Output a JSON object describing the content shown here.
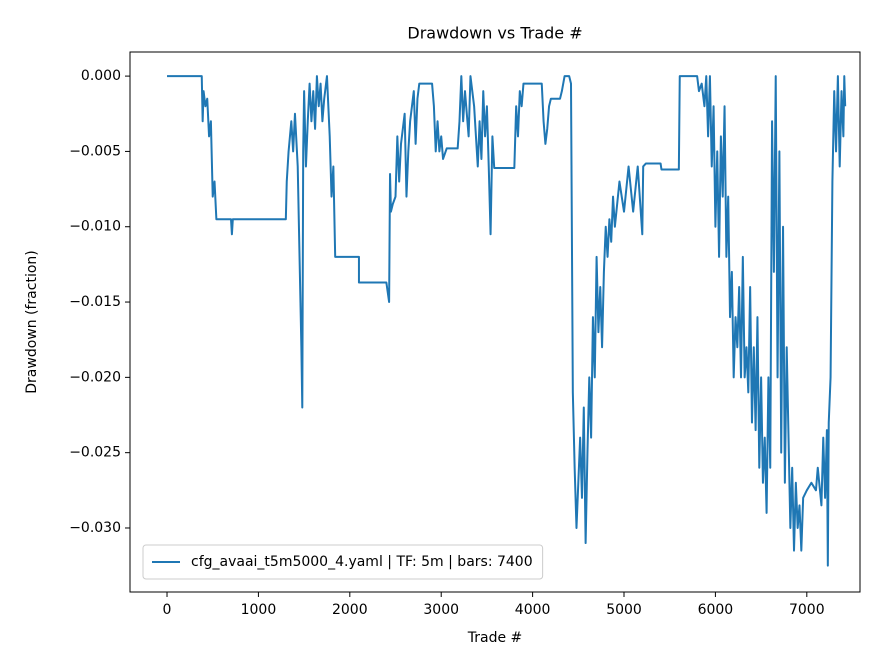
{
  "chart_data": {
    "type": "line",
    "title": "Drawdown vs Trade #",
    "xlabel": "Trade #",
    "ylabel": "Drawdown (fraction)",
    "legend": "lower left",
    "xlim": [
      -405,
      7582
    ],
    "ylim": [
      -0.03425,
      0.0016
    ],
    "xticks": [
      0,
      1000,
      2000,
      3000,
      4000,
      5000,
      6000,
      7000
    ],
    "yticks": [
      {
        "value": 0,
        "label": "0.000"
      },
      {
        "value": -0.005,
        "label": "−0.005"
      },
      {
        "value": -0.01,
        "label": "−0.010"
      },
      {
        "value": -0.015,
        "label": "−0.015"
      },
      {
        "value": -0.02,
        "label": "−0.020"
      },
      {
        "value": -0.025,
        "label": "−0.025"
      },
      {
        "value": -0.03,
        "label": "−0.030"
      }
    ],
    "x": [
      0,
      380,
      390,
      400,
      420,
      440,
      460,
      480,
      500,
      520,
      540,
      700,
      710,
      720,
      1300,
      1310,
      1330,
      1360,
      1380,
      1400,
      1430,
      1450,
      1470,
      1480,
      1490,
      1500,
      1520,
      1540,
      1560,
      1580,
      1600,
      1620,
      1640,
      1660,
      1680,
      1700,
      1720,
      1750,
      1780,
      1800,
      1820,
      1840,
      2100,
      2100,
      2400,
      2430,
      2440,
      2450,
      2470,
      2500,
      2520,
      2540,
      2560,
      2600,
      2620,
      2640,
      2660,
      2700,
      2720,
      2740,
      2760,
      2900,
      2920,
      2940,
      2960,
      2980,
      3000,
      3020,
      3060,
      3180,
      3200,
      3220,
      3240,
      3260,
      3300,
      3320,
      3360,
      3400,
      3420,
      3440,
      3460,
      3480,
      3500,
      3520,
      3540,
      3560,
      3580,
      3800,
      3820,
      3840,
      3860,
      3880,
      3900,
      4100,
      4120,
      4140,
      4160,
      4180,
      4200,
      4300,
      4320,
      4350,
      4400,
      4420,
      4440,
      4460,
      4480,
      4500,
      4520,
      4540,
      4560,
      4580,
      4600,
      4620,
      4640,
      4660,
      4680,
      4700,
      4720,
      4740,
      4760,
      4780,
      4800,
      4820,
      4840,
      4860,
      4880,
      4900,
      4950,
      5000,
      5050,
      5100,
      5150,
      5200,
      5210,
      5240,
      5400,
      5410,
      5600,
      5610,
      5800,
      5820,
      5850,
      5880,
      5900,
      5920,
      5940,
      5960,
      5980,
      6000,
      6020,
      6040,
      6060,
      6080,
      6100,
      6120,
      6140,
      6160,
      6180,
      6200,
      6220,
      6240,
      6260,
      6280,
      6300,
      6320,
      6340,
      6360,
      6380,
      6400,
      6420,
      6440,
      6460,
      6480,
      6500,
      6520,
      6540,
      6560,
      6580,
      6600,
      6620,
      6640,
      6660,
      6680,
      6700,
      6720,
      6740,
      6760,
      6780,
      6800,
      6820,
      6840,
      6860,
      6880,
      6900,
      6920,
      6940,
      6960,
      7000,
      7050,
      7100,
      7120,
      7160,
      7180,
      7200,
      7220,
      7230,
      7240,
      7260,
      7280,
      7300,
      7320,
      7340,
      7360,
      7380,
      7400,
      7410,
      7420
    ],
    "series": [
      {
        "name": "cfg_avaai_t5m5000_4.yaml | TF: 5m | bars: 7400",
        "color": "#1f77b4",
        "values": [
          0,
          0,
          -0.003,
          -0.001,
          -0.002,
          -0.0015,
          -0.004,
          -0.003,
          -0.008,
          -0.007,
          -0.0095,
          -0.0095,
          -0.0105,
          -0.0095,
          -0.0095,
          -0.007,
          -0.005,
          -0.003,
          -0.005,
          -0.0025,
          -0.006,
          -0.012,
          -0.018,
          -0.022,
          -0.005,
          -0.001,
          -0.006,
          -0.003,
          -0.0005,
          -0.003,
          -0.001,
          -0.0035,
          0,
          -0.002,
          -0.0005,
          -0.003,
          -0.0015,
          0,
          -0.004,
          -0.008,
          -0.006,
          -0.012,
          -0.012,
          -0.0137,
          -0.0137,
          -0.015,
          -0.0065,
          -0.009,
          -0.0085,
          -0.008,
          -0.004,
          -0.007,
          -0.0045,
          -0.0025,
          -0.008,
          -0.005,
          -0.003,
          -0.001,
          -0.0045,
          -0.0015,
          -0.0005,
          -0.0005,
          -0.002,
          -0.005,
          -0.003,
          -0.005,
          -0.004,
          -0.0055,
          -0.0048,
          -0.0048,
          -0.003,
          0,
          -0.003,
          -0.001,
          -0.004,
          0,
          -0.002,
          -0.006,
          -0.003,
          -0.0055,
          -0.001,
          -0.004,
          -0.002,
          -0.006,
          -0.0105,
          -0.004,
          -0.0061,
          -0.0061,
          -0.002,
          -0.004,
          -0.001,
          -0.002,
          -0.0005,
          -0.0005,
          -0.003,
          -0.0045,
          -0.0035,
          -0.002,
          -0.0015,
          -0.0015,
          -0.001,
          0,
          0,
          -0.0005,
          -0.021,
          -0.026,
          -0.03,
          -0.027,
          -0.024,
          -0.028,
          -0.022,
          -0.031,
          -0.025,
          -0.02,
          -0.024,
          -0.016,
          -0.02,
          -0.012,
          -0.017,
          -0.014,
          -0.018,
          -0.013,
          -0.01,
          -0.012,
          -0.0095,
          -0.011,
          -0.008,
          -0.01,
          -0.007,
          -0.009,
          -0.006,
          -0.009,
          -0.006,
          -0.0105,
          -0.006,
          -0.0058,
          -0.0058,
          -0.0062,
          -0.0062,
          0,
          0,
          -0.001,
          -0.0005,
          -0.002,
          0,
          -0.004,
          0,
          -0.006,
          -0.002,
          -0.01,
          -0.005,
          -0.012,
          -0.004,
          -0.008,
          -0.002,
          -0.012,
          -0.008,
          -0.016,
          -0.013,
          -0.02,
          -0.016,
          -0.018,
          -0.014,
          -0.02,
          -0.012,
          -0.02,
          -0.018,
          -0.021,
          -0.014,
          -0.023,
          -0.018,
          -0.0235,
          -0.016,
          -0.026,
          -0.02,
          -0.027,
          -0.024,
          -0.029,
          -0.02,
          -0.026,
          -0.003,
          -0.013,
          0,
          -0.02,
          -0.005,
          -0.025,
          -0.01,
          -0.027,
          -0.018,
          -0.024,
          -0.03,
          -0.026,
          -0.0315,
          -0.027,
          -0.03,
          -0.0285,
          -0.0315,
          -0.028,
          -0.0275,
          -0.027,
          -0.0275,
          -0.026,
          -0.0285,
          -0.024,
          -0.028,
          -0.0235,
          -0.0325,
          -0.023,
          -0.02,
          -0.007,
          -0.001,
          -0.005,
          0,
          -0.006,
          -0.001,
          -0.004,
          0,
          -0.002
        ]
      }
    ]
  }
}
